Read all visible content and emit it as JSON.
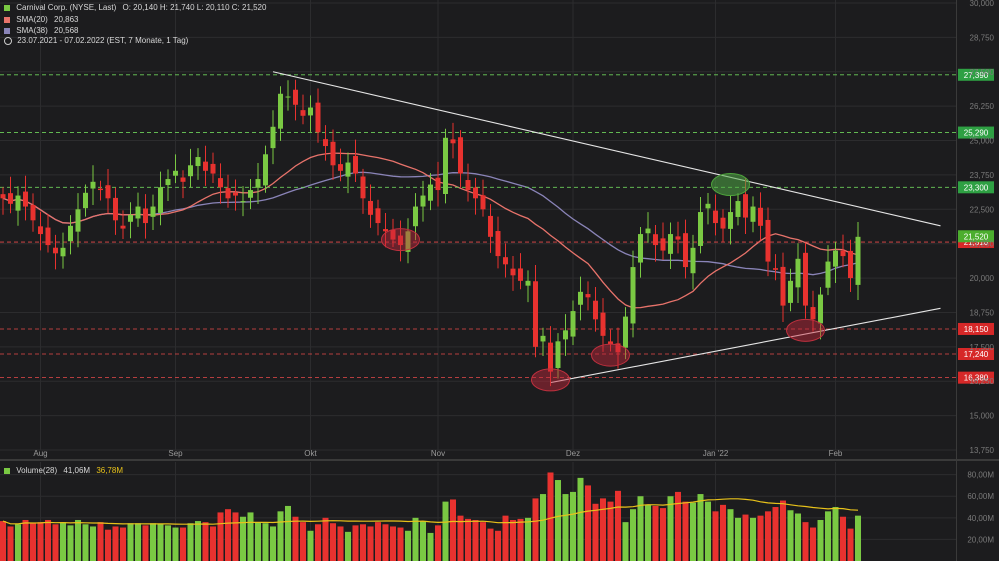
{
  "header": {
    "title": "Carnival Corp. (NYSE, Last)",
    "ohlc": "O: 20,140  H: 21,740  L: 20,110  C: 21,520",
    "sma20_label": "SMA(20)",
    "sma20_value": "20,863",
    "sma38_label": "SMA(38)",
    "sma38_value": "20,568",
    "range_text": "23.07.2021 - 07.02.2022  (EST, 7 Monate, 1 Tag)"
  },
  "volume_legend": {
    "label": "Volume(28)",
    "value1": "41,06M",
    "value2": "36,78M"
  },
  "colors": {
    "background": "#1c1c1e",
    "up": "#7ac943",
    "down": "#e8322f",
    "sma20": "#e8736b",
    "sma38": "#8a84b8",
    "trend": "#e6e6e6",
    "resistance": "#6ccf5a",
    "support": "#e84a4a",
    "volume_avg": "#e8c21a"
  },
  "chart_data": {
    "type": "candlestick",
    "title": "Carnival Corp. (NYSE, Last)",
    "ylim": [
      13.75,
      30.0
    ],
    "y_ticks": [
      "30,000",
      "28,750",
      "27,500",
      "26,250",
      "25,000",
      "23,750",
      "22,500",
      "21,250",
      "20,000",
      "18,750",
      "17,500",
      "16,250",
      "15,000",
      "13,750"
    ],
    "x_ticks": [
      "Aug",
      "Sep",
      "Okt",
      "Nov",
      "Dez",
      "Jan '22",
      "Feb"
    ],
    "price_tag_current": "21,520",
    "levels": [
      {
        "value": 27.39,
        "label": "27,390",
        "kind": "resistance"
      },
      {
        "value": 25.29,
        "label": "25,290",
        "kind": "resistance"
      },
      {
        "value": 23.3,
        "label": "23,300",
        "kind": "resistance"
      },
      {
        "value": 21.31,
        "label": "21,310",
        "kind": "support"
      },
      {
        "value": 18.15,
        "label": "18,150",
        "kind": "support"
      },
      {
        "value": 17.24,
        "label": "17,240",
        "kind": "support"
      },
      {
        "value": 16.38,
        "label": "16,380",
        "kind": "support"
      }
    ],
    "trendlines": [
      {
        "name": "downtrend",
        "from": {
          "bar": 36,
          "price": 27.5
        },
        "to": {
          "bar": 125,
          "price": 21.9
        }
      },
      {
        "name": "uptrend",
        "from": {
          "bar": 73,
          "price": 16.2
        },
        "to": {
          "bar": 125,
          "price": 18.9
        }
      }
    ],
    "highlights": [
      {
        "bar": 53,
        "price": 21.4,
        "color": "red"
      },
      {
        "bar": 73,
        "price": 16.3,
        "color": "red"
      },
      {
        "bar": 81,
        "price": 17.2,
        "color": "red"
      },
      {
        "bar": 97,
        "price": 23.4,
        "color": "green"
      },
      {
        "bar": 107,
        "price": 18.1,
        "color": "red"
      }
    ],
    "volume_ylim": [
      0,
      88
    ],
    "volume_ticks": [
      "80,00M",
      "60,00M",
      "40,00M",
      "20,00M"
    ],
    "closes": [
      22.9,
      22.7,
      23.0,
      22.6,
      22.1,
      21.6,
      21.2,
      20.9,
      21.1,
      21.9,
      22.5,
      23.1,
      23.5,
      23.2,
      22.9,
      22.1,
      21.8,
      22.3,
      22.6,
      22.0,
      22.6,
      23.3,
      23.6,
      23.9,
      23.5,
      24.1,
      24.4,
      23.9,
      23.8,
      23.3,
      22.9,
      23.0,
      22.8,
      23.2,
      23.6,
      24.5,
      25.5,
      26.7,
      26.6,
      26.3,
      25.9,
      26.2,
      25.3,
      24.8,
      24.1,
      23.9,
      24.2,
      23.8,
      22.9,
      22.3,
      22.0,
      21.7,
      21.4,
      21.2,
      21.7,
      22.6,
      23.0,
      23.4,
      23.2,
      25.1,
      24.9,
      23.8,
      23.2,
      22.9,
      22.5,
      21.5,
      20.8,
      20.5,
      20.1,
      19.9,
      19.9,
      17.5,
      17.9,
      16.6,
      17.7,
      18.1,
      18.8,
      19.5,
      19.3,
      18.5,
      17.9,
      17.6,
      17.3,
      18.6,
      20.4,
      21.6,
      21.8,
      21.2,
      21.0,
      21.6,
      21.4,
      20.4,
      21.1,
      22.4,
      22.7,
      22.0,
      21.8,
      22.4,
      22.8,
      22.2,
      22.6,
      21.9,
      20.6,
      20.3,
      19.0,
      19.9,
      20.7,
      19.0,
      18.5,
      19.4,
      20.6,
      21.0,
      20.8,
      20.0,
      21.5
    ],
    "volumes": [
      37,
      32,
      34,
      38,
      35,
      36,
      38,
      34,
      36,
      33,
      38,
      34,
      32,
      36,
      29,
      32,
      31,
      35,
      35,
      33,
      35,
      34,
      33,
      31,
      31,
      35,
      37,
      36,
      32,
      45,
      48,
      45,
      41,
      45,
      36,
      35,
      32,
      46,
      51,
      41,
      36,
      28,
      34,
      40,
      35,
      32,
      27,
      33,
      34,
      32,
      36,
      34,
      32,
      31,
      28,
      40,
      37,
      26,
      33,
      55,
      57,
      42,
      39,
      38,
      36,
      30,
      28,
      42,
      38,
      39,
      40,
      58,
      62,
      82,
      75,
      62,
      64,
      77,
      70,
      53,
      58,
      55,
      65,
      36,
      48,
      60,
      52,
      51,
      49,
      60,
      64,
      55,
      54,
      62,
      55,
      46,
      52,
      48,
      40,
      43,
      40,
      42,
      46,
      50,
      56,
      47,
      44,
      36,
      31,
      38,
      46,
      50,
      41,
      30,
      42
    ]
  }
}
